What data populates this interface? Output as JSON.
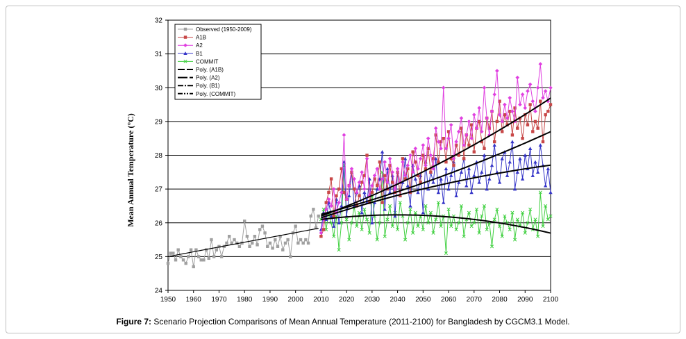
{
  "caption": {
    "label": "Figure 7:",
    "text": " Scenario Projection Comparisons of Mean Annual Temperature (2011-2100) for Bangladesh by CGCM3.1 Model."
  },
  "chart_data": {
    "type": "line",
    "title": "",
    "xlabel": "",
    "ylabel": "Mean Annual Temperature (°C)",
    "xlim": [
      1950,
      2100
    ],
    "ylim": [
      24,
      32
    ],
    "xticks": [
      1950,
      1960,
      1970,
      1980,
      1990,
      2000,
      2010,
      2020,
      2030,
      2040,
      2050,
      2060,
      2070,
      2080,
      2090,
      2100
    ],
    "yticks": [
      24,
      25,
      26,
      27,
      28,
      29,
      30,
      31,
      32
    ],
    "grid": "horizontal",
    "legend_position": "top-left",
    "series": [
      {
        "name": "Observed (1950-2009)",
        "color": "#a0a0a0",
        "marker": "square",
        "x": [
          1950,
          1951,
          1952,
          1953,
          1954,
          1955,
          1956,
          1957,
          1958,
          1959,
          1960,
          1961,
          1962,
          1963,
          1964,
          1965,
          1966,
          1967,
          1968,
          1969,
          1970,
          1971,
          1972,
          1973,
          1974,
          1975,
          1976,
          1977,
          1978,
          1979,
          1980,
          1981,
          1982,
          1983,
          1984,
          1985,
          1986,
          1987,
          1988,
          1989,
          1990,
          1991,
          1992,
          1993,
          1994,
          1995,
          1996,
          1997,
          1998,
          1999,
          2000,
          2001,
          2002,
          2003,
          2004,
          2005,
          2006,
          2007,
          2008,
          2009
        ],
        "y": [
          24.8,
          25.1,
          25.1,
          24.9,
          25.2,
          25.0,
          24.9,
          24.8,
          25.0,
          25.2,
          24.7,
          25.2,
          25.0,
          24.9,
          24.9,
          25.2,
          24.95,
          25.5,
          25.0,
          25.2,
          25.3,
          25.0,
          25.3,
          25.4,
          25.6,
          25.4,
          25.5,
          25.4,
          25.3,
          25.4,
          26.05,
          25.6,
          25.3,
          25.4,
          25.6,
          25.35,
          25.8,
          25.9,
          25.7,
          25.3,
          25.4,
          25.25,
          25.5,
          25.3,
          25.6,
          25.2,
          25.4,
          25.5,
          25.0,
          25.7,
          25.9,
          25.4,
          25.5,
          25.4,
          25.5,
          25.4,
          26.2,
          26.4,
          25.85,
          26.2
        ]
      },
      {
        "name": "A1B",
        "color": "#c84848",
        "marker": "square",
        "x": [
          2010,
          2011,
          2012,
          2013,
          2014,
          2015,
          2016,
          2017,
          2018,
          2019,
          2020,
          2021,
          2022,
          2023,
          2024,
          2025,
          2026,
          2027,
          2028,
          2029,
          2030,
          2031,
          2032,
          2033,
          2034,
          2035,
          2036,
          2037,
          2038,
          2039,
          2040,
          2041,
          2042,
          2043,
          2044,
          2045,
          2046,
          2047,
          2048,
          2049,
          2050,
          2051,
          2052,
          2053,
          2054,
          2055,
          2056,
          2057,
          2058,
          2059,
          2060,
          2061,
          2062,
          2063,
          2064,
          2065,
          2066,
          2067,
          2068,
          2069,
          2070,
          2071,
          2072,
          2073,
          2074,
          2075,
          2076,
          2077,
          2078,
          2079,
          2080,
          2081,
          2082,
          2083,
          2084,
          2085,
          2086,
          2087,
          2088,
          2089,
          2090,
          2091,
          2092,
          2093,
          2094,
          2095,
          2096,
          2097,
          2098,
          2099,
          2100
        ],
        "y": [
          25.6,
          25.8,
          26.6,
          26.9,
          27.3,
          26.2,
          26.8,
          27.0,
          27.6,
          26.9,
          26.7,
          27.1,
          27.5,
          27.0,
          26.5,
          26.8,
          27.2,
          27.4,
          28.0,
          26.6,
          26.9,
          27.3,
          27.1,
          27.8,
          26.6,
          27.4,
          27.0,
          27.7,
          27.2,
          26.9,
          27.5,
          26.8,
          27.9,
          27.3,
          27.6,
          26.9,
          28.1,
          27.8,
          27.4,
          27.2,
          28.0,
          27.6,
          28.2,
          27.5,
          27.9,
          28.6,
          27.8,
          28.4,
          28.5,
          27.8,
          28.7,
          27.9,
          27.7,
          28.3,
          28.0,
          28.8,
          27.9,
          28.6,
          28.3,
          28.9,
          28.1,
          28.8,
          29.0,
          28.4,
          28.2,
          29.1,
          28.8,
          29.3,
          28.4,
          29.0,
          29.6,
          28.7,
          29.2,
          28.9,
          29.3,
          28.6,
          29.4,
          28.8,
          29.1,
          28.5,
          29.2,
          28.9,
          29.5,
          28.7,
          29.0,
          28.8,
          29.6,
          28.4,
          29.2,
          29.3,
          29.5
        ]
      },
      {
        "name": "A2",
        "color": "#e040e0",
        "marker": "diamond",
        "x": [
          2010,
          2011,
          2012,
          2013,
          2014,
          2015,
          2016,
          2017,
          2018,
          2019,
          2020,
          2021,
          2022,
          2023,
          2024,
          2025,
          2026,
          2027,
          2028,
          2029,
          2030,
          2031,
          2032,
          2033,
          2034,
          2035,
          2036,
          2037,
          2038,
          2039,
          2040,
          2041,
          2042,
          2043,
          2044,
          2045,
          2046,
          2047,
          2048,
          2049,
          2050,
          2051,
          2052,
          2053,
          2054,
          2055,
          2056,
          2057,
          2058,
          2059,
          2060,
          2061,
          2062,
          2063,
          2064,
          2065,
          2066,
          2067,
          2068,
          2069,
          2070,
          2071,
          2072,
          2073,
          2074,
          2075,
          2076,
          2077,
          2078,
          2079,
          2080,
          2081,
          2082,
          2083,
          2084,
          2085,
          2086,
          2087,
          2088,
          2089,
          2090,
          2091,
          2092,
          2093,
          2094,
          2095,
          2096,
          2097,
          2098,
          2099,
          2100
        ],
        "y": [
          25.7,
          26.1,
          26.4,
          26.7,
          26.5,
          27.0,
          26.3,
          26.6,
          26.9,
          28.6,
          26.7,
          27.1,
          27.6,
          27.3,
          26.9,
          27.2,
          27.5,
          27.0,
          27.9,
          26.8,
          27.1,
          27.4,
          27.6,
          27.0,
          27.3,
          27.8,
          27.2,
          27.9,
          27.5,
          27.0,
          27.6,
          27.2,
          27.8,
          27.4,
          27.7,
          28.0,
          27.5,
          28.2,
          27.6,
          27.9,
          28.3,
          27.7,
          28.5,
          28.0,
          27.6,
          28.8,
          28.4,
          28.2,
          30.0,
          28.2,
          28.5,
          28.9,
          27.9,
          28.4,
          28.7,
          29.1,
          28.3,
          28.6,
          29.0,
          28.5,
          29.2,
          28.8,
          29.4,
          28.7,
          30.0,
          29.1,
          28.6,
          29.3,
          29.8,
          30.5,
          29.2,
          29.0,
          29.5,
          29.1,
          29.7,
          29.3,
          29.0,
          30.3,
          29.5,
          29.8,
          29.4,
          29.9,
          30.1,
          29.6,
          29.3,
          30.0,
          30.7,
          29.7,
          29.9,
          29.6,
          30.0
        ]
      },
      {
        "name": "B1",
        "color": "#3535c8",
        "marker": "triangle",
        "x": [
          2010,
          2011,
          2012,
          2013,
          2014,
          2015,
          2016,
          2017,
          2018,
          2019,
          2020,
          2021,
          2022,
          2023,
          2024,
          2025,
          2026,
          2027,
          2028,
          2029,
          2030,
          2031,
          2032,
          2033,
          2034,
          2035,
          2036,
          2037,
          2038,
          2039,
          2040,
          2041,
          2042,
          2043,
          2044,
          2045,
          2046,
          2047,
          2048,
          2049,
          2050,
          2051,
          2052,
          2053,
          2054,
          2055,
          2056,
          2057,
          2058,
          2059,
          2060,
          2061,
          2062,
          2063,
          2064,
          2065,
          2066,
          2067,
          2068,
          2069,
          2070,
          2071,
          2072,
          2073,
          2074,
          2075,
          2076,
          2077,
          2078,
          2079,
          2080,
          2081,
          2082,
          2083,
          2084,
          2085,
          2086,
          2087,
          2088,
          2089,
          2090,
          2091,
          2092,
          2093,
          2094,
          2095,
          2096,
          2097,
          2098,
          2099,
          2100
        ],
        "y": [
          25.8,
          26.3,
          26.1,
          26.6,
          26.2,
          25.9,
          26.7,
          26.0,
          26.5,
          27.8,
          26.2,
          26.8,
          27.5,
          26.5,
          26.9,
          27.1,
          26.3,
          26.9,
          26.6,
          27.3,
          26.0,
          26.6,
          27.0,
          27.3,
          28.1,
          26.4,
          27.6,
          26.9,
          27.4,
          26.2,
          27.5,
          26.8,
          27.2,
          27.9,
          27.1,
          26.5,
          27.7,
          27.3,
          26.9,
          27.4,
          26.3,
          27.8,
          27.0,
          27.5,
          27.2,
          27.9,
          26.9,
          27.3,
          26.6,
          27.6,
          27.0,
          27.4,
          27.8,
          26.8,
          27.2,
          27.5,
          27.9,
          27.1,
          27.6,
          26.9,
          27.4,
          27.8,
          27.2,
          27.5,
          28.0,
          27.0,
          27.3,
          27.7,
          28.3,
          27.5,
          27.2,
          27.9,
          28.1,
          27.4,
          27.8,
          28.4,
          27.0,
          27.5,
          27.9,
          27.3,
          28.0,
          27.6,
          28.2,
          27.4,
          27.8,
          27.5,
          28.3,
          27.7,
          27.1,
          27.6,
          26.9
        ]
      },
      {
        "name": "COMMIT",
        "color": "#40d040",
        "marker": "x",
        "x": [
          2010,
          2011,
          2012,
          2013,
          2014,
          2015,
          2016,
          2017,
          2018,
          2019,
          2020,
          2021,
          2022,
          2023,
          2024,
          2025,
          2026,
          2027,
          2028,
          2029,
          2030,
          2031,
          2032,
          2033,
          2034,
          2035,
          2036,
          2037,
          2038,
          2039,
          2040,
          2041,
          2042,
          2043,
          2044,
          2045,
          2046,
          2047,
          2048,
          2049,
          2050,
          2051,
          2052,
          2053,
          2054,
          2055,
          2056,
          2057,
          2058,
          2059,
          2060,
          2061,
          2062,
          2063,
          2064,
          2065,
          2066,
          2067,
          2068,
          2069,
          2070,
          2071,
          2072,
          2073,
          2074,
          2075,
          2076,
          2077,
          2078,
          2079,
          2080,
          2081,
          2082,
          2083,
          2084,
          2085,
          2086,
          2087,
          2088,
          2089,
          2090,
          2091,
          2092,
          2093,
          2094,
          2095,
          2096,
          2097,
          2098,
          2099,
          2100
        ],
        "y": [
          26.1,
          26.4,
          25.8,
          26.3,
          26.0,
          25.6,
          26.2,
          25.2,
          26.0,
          27.7,
          26.1,
          25.5,
          26.0,
          26.5,
          25.9,
          26.3,
          25.8,
          26.4,
          26.1,
          25.7,
          26.8,
          26.2,
          25.5,
          26.0,
          27.5,
          25.6,
          26.1,
          26.5,
          25.9,
          26.3,
          25.8,
          26.6,
          26.2,
          25.5,
          26.0,
          26.4,
          25.7,
          26.3,
          25.9,
          26.2,
          25.8,
          26.5,
          26.0,
          26.3,
          25.7,
          26.1,
          26.6,
          25.9,
          26.2,
          25.1,
          26.4,
          25.9,
          26.2,
          25.8,
          26.0,
          26.5,
          25.6,
          26.1,
          26.3,
          25.9,
          26.0,
          26.4,
          25.7,
          26.2,
          26.5,
          25.8,
          26.0,
          25.3,
          26.1,
          26.4,
          25.9,
          25.6,
          26.2,
          26.0,
          25.8,
          26.3,
          25.5,
          26.1,
          25.9,
          26.3,
          25.7,
          26.0,
          26.4,
          25.8,
          26.1,
          25.6,
          26.9,
          25.9,
          26.5,
          26.1,
          26.2
        ]
      }
    ],
    "trendlines": [
      {
        "name": "Poly. (A1B)",
        "color": "#000000",
        "dash": "solid",
        "x": [
          2010,
          2100
        ],
        "poly": [
          26.25,
          0.02,
          8e-05
        ]
      },
      {
        "name": "Poly. (A2)",
        "color": "#000000",
        "dash": "solid",
        "x": [
          2010,
          2100
        ],
        "poly": [
          26.2,
          0.028,
          0.00012
        ]
      },
      {
        "name": "Poly. (B1)",
        "color": "#000000",
        "dash": "solid",
        "x": [
          2010,
          2100
        ],
        "poly": [
          26.15,
          0.0245,
          -8e-05
        ]
      },
      {
        "name": "Poly. (COMMIT)",
        "color": "#000000",
        "dash": "solid",
        "x": [
          2010,
          2100
        ],
        "poly": [
          26.1,
          0.009,
          -0.00015
        ]
      },
      {
        "name": "",
        "color": "#000000",
        "dash": "solid",
        "x": [
          1950,
          2009
        ],
        "poly": [
          25.0,
          0.0142,
          0.0
        ]
      }
    ],
    "legend": [
      {
        "label": "Observed (1950-2009)",
        "color": "#a0a0a0",
        "marker": "square",
        "style": "line"
      },
      {
        "label": "A1B",
        "color": "#c84848",
        "marker": "square",
        "style": "line"
      },
      {
        "label": "A2",
        "color": "#e040e0",
        "marker": "diamond",
        "style": "line"
      },
      {
        "label": "B1",
        "color": "#3535c8",
        "marker": "triangle",
        "style": "line"
      },
      {
        "label": "COMMIT",
        "color": "#40d040",
        "marker": "x",
        "style": "line"
      },
      {
        "label": "Poly. (A1B)",
        "color": "#000000",
        "marker": "none",
        "style": "dash"
      },
      {
        "label": "Poly. (A2)",
        "color": "#000000",
        "marker": "none",
        "style": "longdash"
      },
      {
        "label": "Poly. (B1)",
        "color": "#000000",
        "marker": "none",
        "style": "dashdot"
      },
      {
        "label": "Poly. (COMMIT)",
        "color": "#000000",
        "marker": "none",
        "style": "dashdotdot"
      }
    ]
  }
}
